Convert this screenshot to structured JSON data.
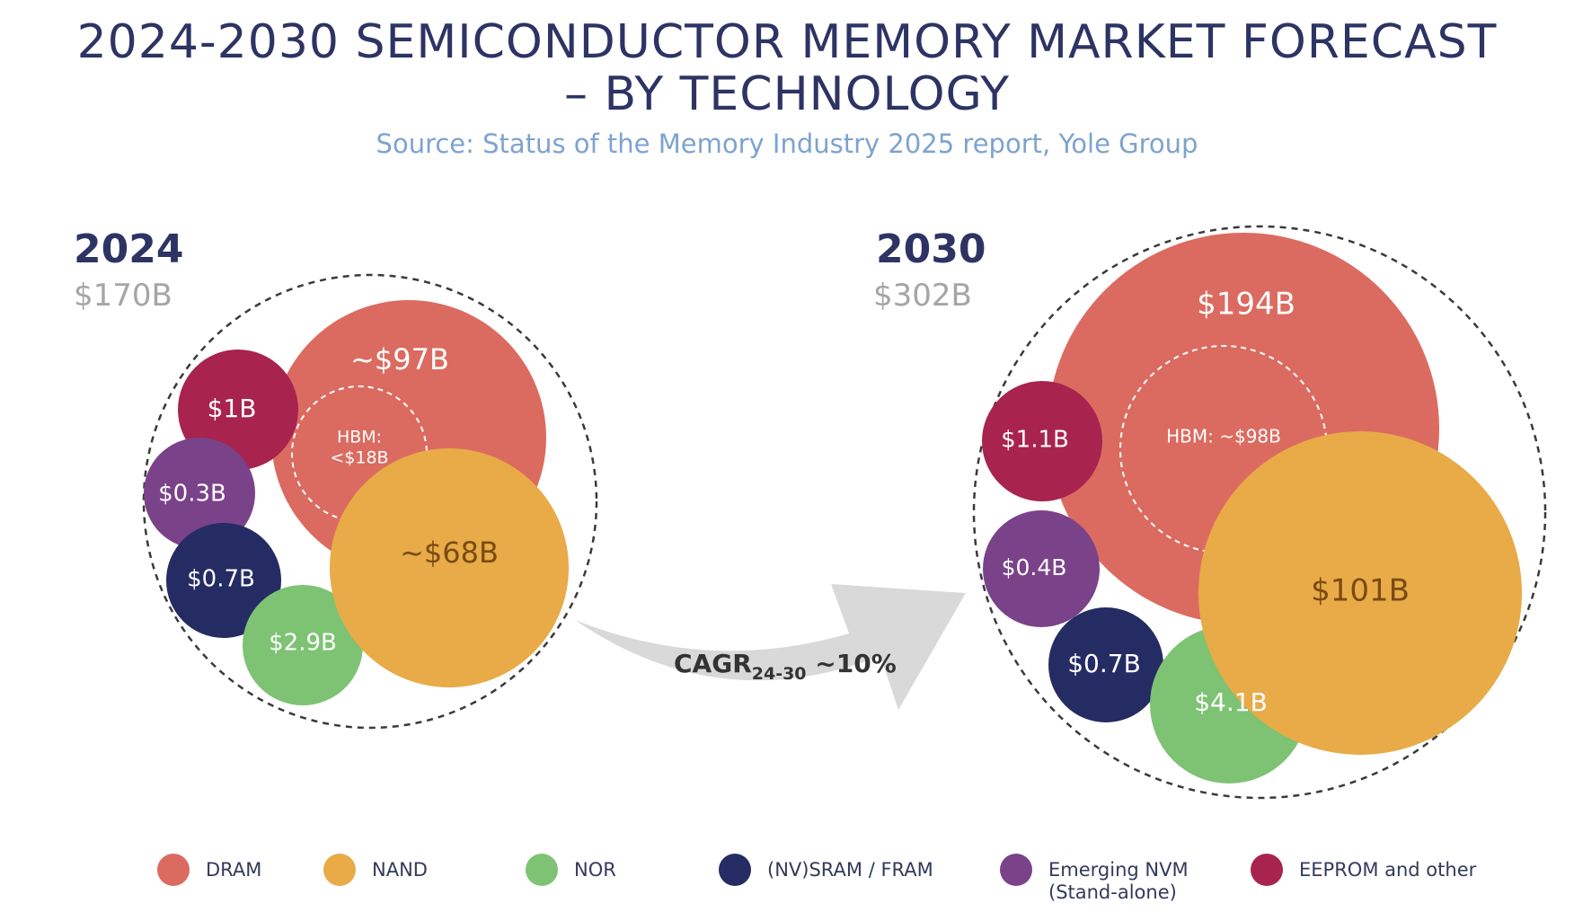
{
  "title_line1": "2024-2030 SEMICONDUCTOR MEMORY MARKET FORECAST",
  "title_line2": "– BY TECHNOLOGY",
  "subtitle": "Source: Status of the Memory Industry 2025 report, Yole Group",
  "cagr": {
    "label": "CAGR",
    "subscript": "24-30",
    "value": "~10%"
  },
  "chart_data": [
    {
      "type": "bubble",
      "year": "2024",
      "total": "$170B",
      "bubbles": [
        {
          "category": "DRAM",
          "label": "~$97B",
          "value": 97,
          "inner": {
            "label": "HBM:",
            "value_label": "<$18B",
            "value": 18
          }
        },
        {
          "category": "NAND",
          "label": "~$68B",
          "value": 68
        },
        {
          "category": "NOR",
          "label": "$2.9B",
          "value": 2.9
        },
        {
          "category": "(NV)SRAM / FRAM",
          "label": "$0.7B",
          "value": 0.7
        },
        {
          "category": "Emerging NVM (Stand-alone)",
          "label": "$0.3B",
          "value": 0.3
        },
        {
          "category": "EEPROM and other",
          "label": "$1B",
          "value": 1
        }
      ]
    },
    {
      "type": "bubble",
      "year": "2030",
      "total": "$302B",
      "bubbles": [
        {
          "category": "DRAM",
          "label": "$194B",
          "value": 194,
          "inner": {
            "label": "HBM: ~$98B",
            "value": 98
          }
        },
        {
          "category": "NAND",
          "label": "$101B",
          "value": 101
        },
        {
          "category": "NOR",
          "label": "$4.1B",
          "value": 4.1
        },
        {
          "category": "(NV)SRAM / FRAM",
          "label": "$0.7B",
          "value": 0.7
        },
        {
          "category": "Emerging NVM (Stand-alone)",
          "label": "$0.4B",
          "value": 0.4
        },
        {
          "category": "EEPROM and other",
          "label": "$1.1B",
          "value": 1.1
        }
      ]
    }
  ],
  "legend": [
    {
      "name": "DRAM",
      "color": "#db6b60"
    },
    {
      "name": "NAND",
      "color": "#e8ab48"
    },
    {
      "name": "NOR",
      "color": "#7dc373"
    },
    {
      "name": "(NV)SRAM / FRAM",
      "color": "#252c63"
    },
    {
      "name": "Emerging NVM\n(Stand-alone)",
      "color": "#7a4289"
    },
    {
      "name": "EEPROM and other",
      "color": "#a8234e"
    }
  ]
}
